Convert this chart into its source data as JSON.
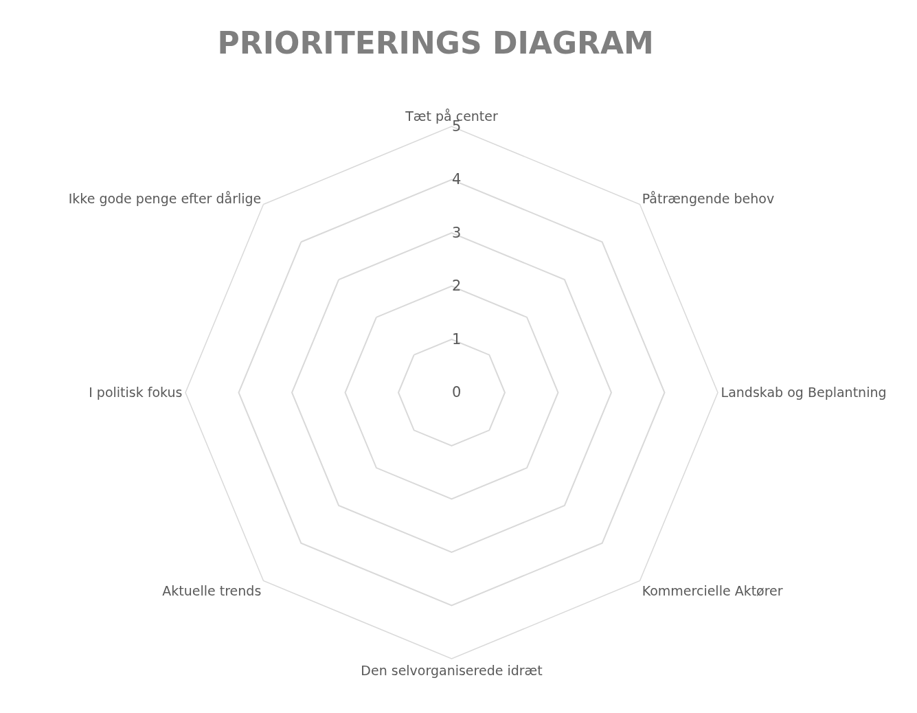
{
  "chart_data": {
    "type": "radar",
    "title": "PRIORITERINGS DIAGRAM",
    "categories": [
      "Tæt på center",
      "Påtrængende behov",
      "Landskab og Beplantning",
      "Kommercielle Aktører",
      "Den selvorganiserede idræt",
      "Aktuelle trends",
      "I politisk fokus",
      "Ikke gode penge efter dårlige"
    ],
    "ylim": [
      0,
      5
    ],
    "yticks": [
      0,
      1,
      2,
      3,
      4,
      5
    ],
    "grid": true
  }
}
